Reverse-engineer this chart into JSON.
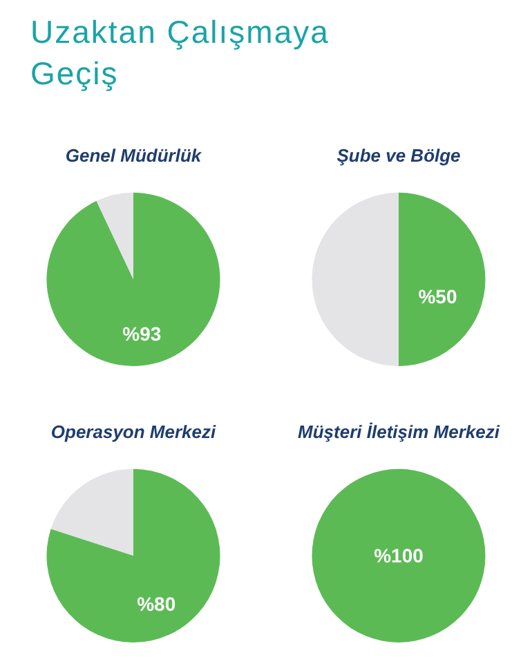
{
  "chart_data": [
    {
      "type": "other",
      "title": "Uzaktan Çalışmaya Geçiş"
    },
    {
      "type": "pie",
      "title": "Genel Müdürlük",
      "categories": [
        null,
        null
      ],
      "values": [
        93,
        7
      ],
      "colors": [
        "#5cba55",
        "#e4e4e7"
      ],
      "value_labels": [
        "%93",
        null
      ]
    },
    {
      "type": "pie",
      "title": "Şube ve Bölge",
      "categories": [
        null,
        null
      ],
      "values": [
        50,
        50
      ],
      "colors": [
        "#5cba55",
        "#e4e4e7"
      ],
      "value_labels": [
        "%50",
        null
      ]
    },
    {
      "type": "pie",
      "title": "Operasyon Merkezi",
      "categories": [
        null,
        null
      ],
      "values": [
        80,
        20
      ],
      "colors": [
        "#5cba55",
        "#e4e4e7"
      ],
      "value_labels": [
        "%80",
        null
      ]
    },
    {
      "type": "pie",
      "title": "Müşteri İletişim Merkezi",
      "categories": [
        null
      ],
      "values": [
        100
      ],
      "colors": [
        "#5cba55"
      ],
      "value_labels": [
        "%100"
      ]
    }
  ]
}
